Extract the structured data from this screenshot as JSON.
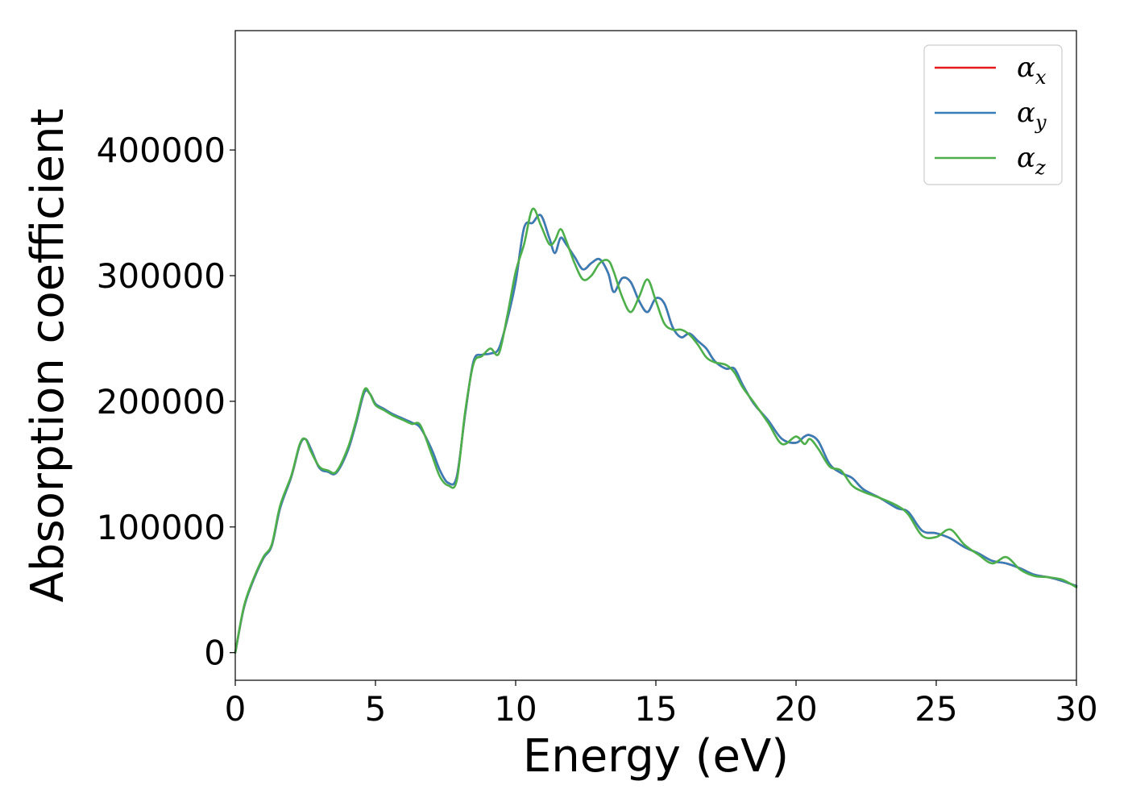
{
  "chart_data": {
    "type": "line",
    "xlabel": "Energy (eV)",
    "ylabel": "Absorption coefficient",
    "xlim": [
      0,
      30
    ],
    "ylim": [
      -22000,
      495000
    ],
    "xticks": [
      0,
      5,
      10,
      15,
      20,
      25,
      30
    ],
    "yticks": [
      0,
      100000,
      200000,
      300000,
      400000
    ],
    "grid": false,
    "legend_position": "top-right",
    "series": [
      {
        "name": "α_x",
        "legend_symbol": "α",
        "legend_subscript": "x",
        "color": "#e41a1c",
        "x": [
          0,
          0.3,
          0.6,
          1.0,
          1.3,
          1.6,
          2.0,
          2.3,
          2.5,
          2.7,
          3.0,
          3.3,
          3.6,
          4.0,
          4.3,
          4.6,
          4.8,
          5.0,
          5.3,
          5.6,
          6.0,
          6.3,
          6.6,
          7.0,
          7.3,
          7.6,
          7.9,
          8.2,
          8.5,
          8.8,
          9.1,
          9.4,
          9.7,
          10.0,
          10.3,
          10.6,
          10.9,
          11.2,
          11.4,
          11.6,
          11.8,
          12.1,
          12.4,
          12.7,
          13.0,
          13.3,
          13.5,
          13.8,
          14.1,
          14.4,
          14.7,
          15.0,
          15.3,
          15.6,
          15.9,
          16.2,
          16.5,
          16.8,
          17.1,
          17.5,
          17.8,
          18.1,
          18.5,
          19.0,
          19.5,
          20.0,
          20.3,
          20.5,
          20.8,
          21.2,
          21.6,
          22.0,
          22.4,
          23.0,
          23.6,
          24.0,
          24.5,
          25.0,
          25.5,
          26.0,
          26.5,
          27.0,
          27.5,
          28.0,
          28.5,
          29.0,
          29.5,
          30.0
        ],
        "values": [
          0,
          35000,
          55000,
          75000,
          85000,
          115000,
          140000,
          165000,
          170000,
          162000,
          147000,
          144000,
          143000,
          160000,
          182000,
          207000,
          206000,
          198000,
          194000,
          190000,
          186000,
          183000,
          179000,
          162000,
          145000,
          135000,
          140000,
          190000,
          232000,
          237000,
          238000,
          242000,
          265000,
          295000,
          338000,
          342000,
          348000,
          330000,
          318000,
          330000,
          325000,
          315000,
          305000,
          310000,
          313000,
          302000,
          287000,
          298000,
          295000,
          280000,
          271000,
          282000,
          278000,
          259000,
          251000,
          254000,
          248000,
          242000,
          232000,
          226000,
          226000,
          213000,
          198000,
          185000,
          170000,
          167000,
          172000,
          173000,
          168000,
          150000,
          143000,
          139000,
          130000,
          123000,
          115000,
          112000,
          97000,
          95000,
          91000,
          84000,
          79000,
          73000,
          71000,
          67000,
          62000,
          60000,
          57000,
          53000
        ]
      },
      {
        "name": "α_y",
        "legend_symbol": "α",
        "legend_subscript": "y",
        "color": "#377eb8",
        "x": [
          0,
          0.3,
          0.6,
          1.0,
          1.3,
          1.6,
          2.0,
          2.3,
          2.5,
          2.7,
          3.0,
          3.3,
          3.6,
          4.0,
          4.3,
          4.6,
          4.8,
          5.0,
          5.3,
          5.6,
          6.0,
          6.3,
          6.6,
          7.0,
          7.3,
          7.6,
          7.9,
          8.2,
          8.5,
          8.8,
          9.1,
          9.4,
          9.7,
          10.0,
          10.3,
          10.6,
          10.9,
          11.2,
          11.4,
          11.6,
          11.8,
          12.1,
          12.4,
          12.7,
          13.0,
          13.3,
          13.5,
          13.8,
          14.1,
          14.4,
          14.7,
          15.0,
          15.3,
          15.6,
          15.9,
          16.2,
          16.5,
          16.8,
          17.1,
          17.5,
          17.8,
          18.1,
          18.5,
          19.0,
          19.5,
          20.0,
          20.3,
          20.5,
          20.8,
          21.2,
          21.6,
          22.0,
          22.4,
          23.0,
          23.6,
          24.0,
          24.5,
          25.0,
          25.5,
          26.0,
          26.5,
          27.0,
          27.5,
          28.0,
          28.5,
          29.0,
          29.5,
          30.0
        ],
        "values": [
          0,
          35000,
          55000,
          75000,
          85000,
          115000,
          140000,
          165000,
          170000,
          162000,
          147000,
          144000,
          143000,
          160000,
          182000,
          207000,
          206000,
          198000,
          194000,
          190000,
          186000,
          183000,
          179000,
          162000,
          145000,
          135000,
          140000,
          190000,
          232000,
          237000,
          238000,
          242000,
          265000,
          295000,
          338000,
          342000,
          348000,
          330000,
          318000,
          330000,
          325000,
          315000,
          305000,
          310000,
          313000,
          302000,
          287000,
          298000,
          295000,
          280000,
          271000,
          282000,
          278000,
          259000,
          251000,
          254000,
          248000,
          242000,
          232000,
          226000,
          226000,
          213000,
          198000,
          185000,
          170000,
          167000,
          172000,
          173000,
          168000,
          150000,
          143000,
          139000,
          130000,
          123000,
          115000,
          112000,
          97000,
          95000,
          91000,
          84000,
          79000,
          73000,
          71000,
          67000,
          62000,
          60000,
          57000,
          53000
        ]
      },
      {
        "name": "α_z",
        "legend_symbol": "α",
        "legend_subscript": "z",
        "color": "#4daf4a",
        "x": [
          0,
          0.3,
          0.6,
          1.0,
          1.3,
          1.6,
          2.0,
          2.3,
          2.5,
          2.7,
          3.0,
          3.3,
          3.6,
          4.0,
          4.3,
          4.6,
          4.8,
          5.0,
          5.3,
          5.6,
          6.0,
          6.3,
          6.6,
          7.0,
          7.3,
          7.6,
          7.9,
          8.2,
          8.5,
          8.8,
          9.1,
          9.4,
          9.7,
          10.0,
          10.3,
          10.6,
          10.9,
          11.2,
          11.4,
          11.6,
          11.8,
          12.1,
          12.4,
          12.7,
          13.0,
          13.3,
          13.5,
          13.8,
          14.1,
          14.4,
          14.7,
          15.0,
          15.3,
          15.6,
          15.9,
          16.2,
          16.5,
          16.8,
          17.1,
          17.5,
          17.8,
          18.1,
          18.5,
          19.0,
          19.5,
          20.0,
          20.3,
          20.5,
          20.8,
          21.2,
          21.6,
          22.0,
          22.4,
          23.0,
          23.6,
          24.0,
          24.5,
          25.0,
          25.5,
          26.0,
          26.5,
          27.0,
          27.5,
          28.0,
          28.5,
          29.0,
          29.5,
          30.0
        ],
        "values": [
          0,
          36000,
          56000,
          76000,
          86000,
          117000,
          141000,
          166000,
          170000,
          160000,
          148000,
          145000,
          144000,
          162000,
          184000,
          209000,
          206000,
          197000,
          193000,
          189000,
          185000,
          182000,
          181000,
          158000,
          140000,
          133000,
          137000,
          192000,
          230000,
          236000,
          242000,
          238000,
          268000,
          303000,
          325000,
          353000,
          340000,
          325000,
          328000,
          337000,
          328000,
          310000,
          297000,
          300000,
          310000,
          312000,
          303000,
          283000,
          271000,
          283000,
          297000,
          280000,
          262000,
          257000,
          257000,
          253000,
          245000,
          235000,
          231000,
          229000,
          223000,
          211000,
          199000,
          183000,
          166000,
          172000,
          166000,
          170000,
          162000,
          148000,
          145000,
          133000,
          128000,
          123000,
          117000,
          110000,
          93000,
          92000,
          98000,
          86000,
          78000,
          71000,
          76000,
          66000,
          61000,
          60000,
          58000,
          52000
        ]
      }
    ]
  }
}
